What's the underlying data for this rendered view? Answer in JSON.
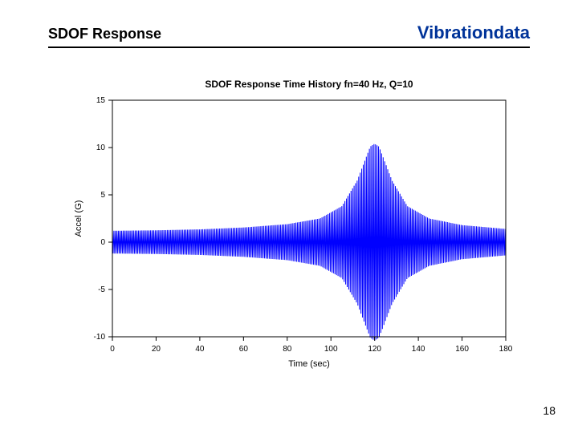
{
  "header": {
    "left": "SDOF Response",
    "right": "Vibrationdata"
  },
  "page_number": "18",
  "chart": {
    "type": "line",
    "title": "SDOF Response Time History  fn=40 Hz, Q=10",
    "title_fontsize": 12,
    "title_color": "#000000",
    "xlabel": "Time (sec)",
    "ylabel": "Accel (G)",
    "label_fontsize": 11,
    "label_color": "#000000",
    "tick_fontsize": 10,
    "tick_color": "#000000",
    "background_color": "#ffffff",
    "axis_color": "#000000",
    "series_color": "#0000ff",
    "line_width": 1,
    "xlim": [
      0,
      180
    ],
    "ylim": [
      -10,
      15
    ],
    "xticks": [
      0,
      20,
      40,
      60,
      80,
      100,
      120,
      140,
      160,
      180
    ],
    "yticks": [
      -10,
      -5,
      0,
      5,
      10,
      15
    ],
    "envelope": [
      {
        "t": 0,
        "a": 1.2
      },
      {
        "t": 20,
        "a": 1.25
      },
      {
        "t": 40,
        "a": 1.35
      },
      {
        "t": 60,
        "a": 1.55
      },
      {
        "t": 80,
        "a": 1.9
      },
      {
        "t": 95,
        "a": 2.5
      },
      {
        "t": 105,
        "a": 3.8
      },
      {
        "t": 112,
        "a": 6.5
      },
      {
        "t": 118,
        "a": 10.1
      },
      {
        "t": 120,
        "a": 10.4
      },
      {
        "t": 122,
        "a": 10.1
      },
      {
        "t": 128,
        "a": 6.5
      },
      {
        "t": 135,
        "a": 3.8
      },
      {
        "t": 145,
        "a": 2.5
      },
      {
        "t": 160,
        "a": 1.8
      },
      {
        "t": 180,
        "a": 1.4
      }
    ]
  }
}
